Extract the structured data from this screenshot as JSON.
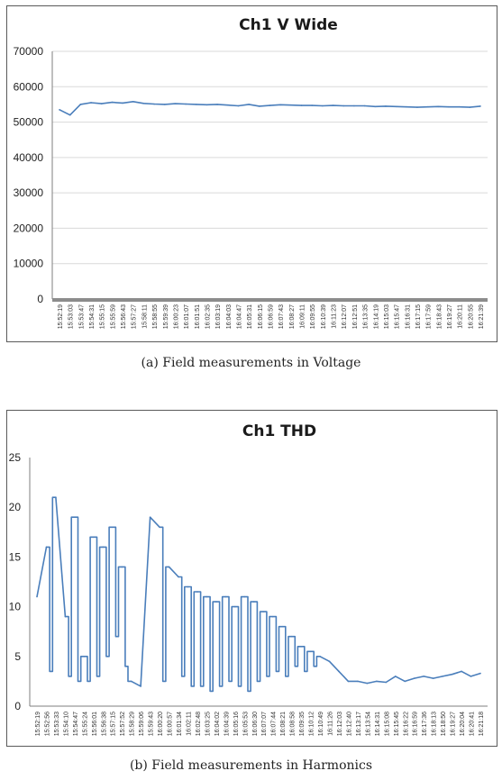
{
  "chart_data": [
    {
      "type": "line",
      "title": "Ch1 V Wide",
      "xlabel": "",
      "ylabel": "",
      "ylim": [
        0,
        70000
      ],
      "yticks": [
        "0",
        "10000",
        "20000",
        "30000",
        "40000",
        "50000",
        "60000",
        "70000"
      ],
      "grid": true,
      "color": "#4a7ebb",
      "categories": [
        "15:52:19",
        "15:53:03",
        "15:53:47",
        "15:54:31",
        "15:55:15",
        "15:55:59",
        "15:56:43",
        "15:57:27",
        "15:58:11",
        "15:58:55",
        "15:59:39",
        "16:00:23",
        "16:01:07",
        "16:01:51",
        "16:02:35",
        "16:03:19",
        "16:04:03",
        "16:04:47",
        "16:05:31",
        "16:06:15",
        "16:06:59",
        "16:07:43",
        "16:08:27",
        "16:09:11",
        "16:09:55",
        "16:10:39",
        "16:11:23",
        "16:12:07",
        "16:12:51",
        "16:13:35",
        "16:14:19",
        "16:15:03",
        "16:15:47",
        "16:16:31",
        "16:17:15",
        "16:17:59",
        "16:18:43",
        "16:19:27",
        "16:20:11",
        "16:20:55",
        "16:21:39"
      ],
      "values": [
        53500,
        52000,
        55000,
        55500,
        55200,
        55600,
        55400,
        55800,
        55300,
        55100,
        55000,
        55200,
        55100,
        55000,
        54900,
        55000,
        54800,
        54600,
        55000,
        54500,
        54700,
        54900,
        54800,
        54700,
        54700,
        54600,
        54700,
        54600,
        54600,
        54600,
        54400,
        54500,
        54400,
        54300,
        54200,
        54300,
        54400,
        54300,
        54300,
        54200,
        54500
      ]
    },
    {
      "type": "line",
      "title": "Ch1 THD",
      "xlabel": "",
      "ylabel": "",
      "ylim": [
        0,
        25
      ],
      "yticks": [
        "0",
        "5",
        "10",
        "15",
        "20",
        "25"
      ],
      "grid": false,
      "color": "#4a7ebb",
      "categories": [
        "15:52:19",
        "15:52:56",
        "15:53:33",
        "15:54:10",
        "15:54:47",
        "15:55:24",
        "15:56:01",
        "15:56:38",
        "15:57:15",
        "15:57:52",
        "15:58:29",
        "15:59:06",
        "15:59:43",
        "16:00:20",
        "16:00:57",
        "16:01:34",
        "16:02:11",
        "16:02:48",
        "16:03:25",
        "16:04:02",
        "16:04:39",
        "16:05:16",
        "16:05:53",
        "16:06:30",
        "16:07:07",
        "16:07:44",
        "16:08:21",
        "16:08:58",
        "16:09:35",
        "16:10:12",
        "16:10:49",
        "16:11:26",
        "16:12:03",
        "16:12:40",
        "16:13:17",
        "16:13:54",
        "16:14:31",
        "16:15:08",
        "16:15:45",
        "16:16:22",
        "16:16:59",
        "16:17:36",
        "16:18:13",
        "16:18:50",
        "16:19:27",
        "16:20:04",
        "16:20:41",
        "16:21:18"
      ],
      "values": [
        11,
        16,
        21,
        9,
        19,
        5,
        17,
        16,
        18,
        14,
        2.5,
        2,
        19,
        18,
        14,
        13,
        12,
        11.5,
        11,
        10.5,
        11,
        10,
        11,
        10.5,
        9.5,
        9,
        8,
        7,
        6,
        5.5,
        5,
        4.5,
        3.5,
        2.5,
        2.5,
        2.3,
        2.5,
        2.4,
        3,
        2.5,
        2.8,
        3,
        2.8,
        3,
        3.2,
        3.5,
        3,
        3.3
      ],
      "dips": [
        [
          1,
          3.5
        ],
        [
          3,
          3
        ],
        [
          4,
          2.5
        ],
        [
          5,
          2.5
        ],
        [
          6,
          3
        ],
        [
          7,
          5
        ],
        [
          8,
          7
        ],
        [
          9,
          4
        ],
        [
          13,
          2.5
        ],
        [
          15,
          3
        ],
        [
          16,
          2
        ],
        [
          17,
          2
        ],
        [
          18,
          1.5
        ],
        [
          19,
          2
        ],
        [
          20,
          2.5
        ],
        [
          21,
          2
        ],
        [
          22,
          1.5
        ],
        [
          23,
          2.5
        ],
        [
          24,
          3
        ],
        [
          25,
          3.5
        ],
        [
          26,
          3
        ],
        [
          27,
          4
        ],
        [
          28,
          3.5
        ],
        [
          29,
          4
        ]
      ]
    }
  ],
  "captions": {
    "a": "(a) Field measurements in Voltage",
    "b": "(b) Field measurements in Harmonics"
  }
}
